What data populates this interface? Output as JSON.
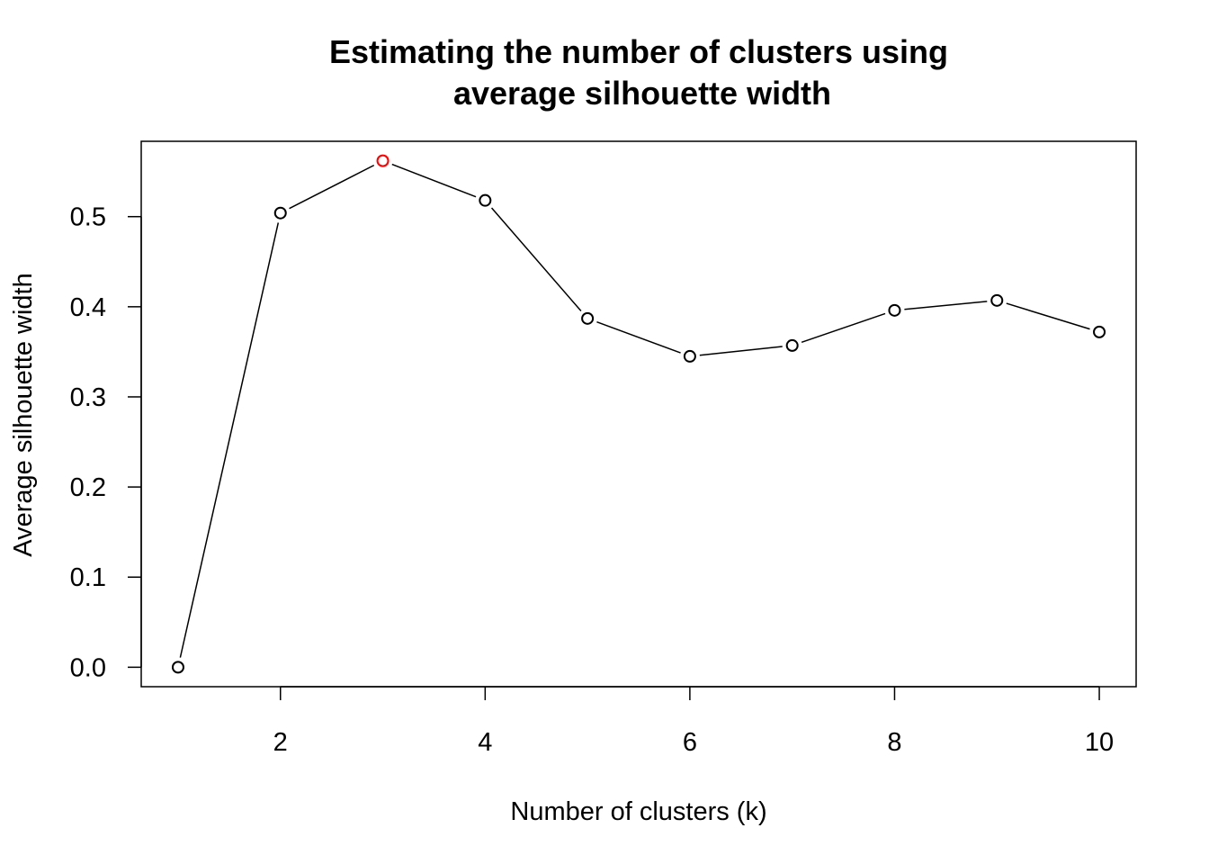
{
  "chart_data": {
    "type": "line",
    "title_lines": [
      "Estimating the number of clusters using",
      "average silhouette width"
    ],
    "xlabel": "Number of clusters (k)",
    "ylabel": "Average silhouette width",
    "x": [
      1,
      2,
      3,
      4,
      5,
      6,
      7,
      8,
      9,
      10
    ],
    "values": [
      0.0,
      0.504,
      0.562,
      0.518,
      0.387,
      0.345,
      0.357,
      0.396,
      0.407,
      0.372
    ],
    "highlight_x": 3,
    "xlim": [
      0.64,
      10.36
    ],
    "ylim": [
      -0.0216,
      0.5836
    ],
    "x_ticks": [
      2,
      4,
      6,
      8,
      10
    ],
    "y_ticks": [
      0.0,
      0.1,
      0.2,
      0.3,
      0.4,
      0.5
    ],
    "x_tick_labels": [
      "2",
      "4",
      "6",
      "8",
      "10"
    ],
    "y_tick_labels": [
      "0.0",
      "0.1",
      "0.2",
      "0.3",
      "0.4",
      "0.5"
    ],
    "grid": false,
    "legend": "none",
    "colors": {
      "line": "#000000",
      "point": "#000000",
      "highlight": "#ff0000"
    }
  }
}
